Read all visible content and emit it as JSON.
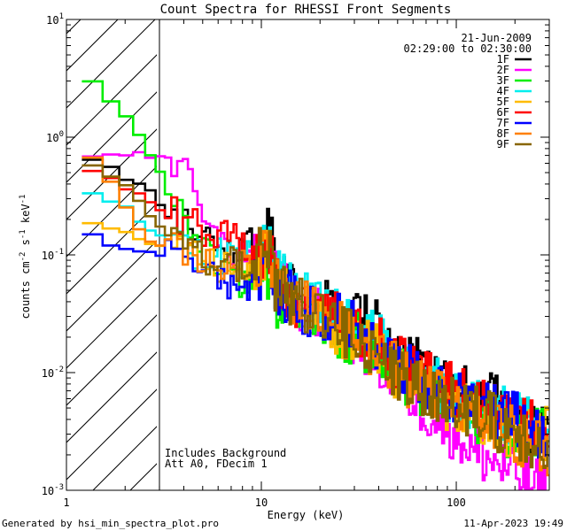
{
  "chart_data": {
    "type": "line",
    "title": "Count Spectra for RHESSI Front Segments",
    "xlabel": "Energy (keV)",
    "ylabel_main": "counts cm",
    "ylabel_sup1": "-2",
    "ylabel_mid1": " s",
    "ylabel_sup2": "-1",
    "ylabel_mid2": " keV",
    "ylabel_sup3": "-1",
    "xscale": "log",
    "yscale": "log",
    "xlim": [
      1,
      300
    ],
    "ylim": [
      0.001,
      10
    ],
    "x_ticks": [
      {
        "value": 1,
        "label": "1"
      },
      {
        "value": 10,
        "label": "10"
      },
      {
        "value": 100,
        "label": "100"
      }
    ],
    "y_ticks": [
      {
        "value": 10,
        "base": "10",
        "exp": "1"
      },
      {
        "value": 1,
        "base": "10",
        "exp": "0"
      },
      {
        "value": 0.1,
        "base": "10",
        "exp": "-1"
      },
      {
        "value": 0.01,
        "base": "10",
        "exp": "-2"
      },
      {
        "value": 0.001,
        "base": "10",
        "exp": "-3"
      }
    ],
    "date": "21-Jun-2009",
    "time_range": "02:29:00 to 02:30:00",
    "hatched_region_keV": [
      1,
      3
    ],
    "notes": [
      "Includes Background",
      "Att A0, FDecim 1"
    ],
    "footer_left": "Generated by hsi_min_spectra_plot.pro",
    "footer_right": "11-Apr-2023 19:49",
    "legend_position": "top-right",
    "series": [
      {
        "name": "1F",
        "color": "#000000",
        "anchors": [
          [
            1.2,
            0.62
          ],
          [
            1.5,
            0.6
          ],
          [
            2,
            0.45
          ],
          [
            2.5,
            0.4
          ],
          [
            3,
            0.26
          ],
          [
            4,
            0.2
          ],
          [
            5,
            0.16
          ],
          [
            6,
            0.14
          ],
          [
            7,
            0.1
          ],
          [
            8,
            0.12
          ],
          [
            9,
            0.12
          ],
          [
            10,
            0.14
          ],
          [
            11,
            0.16
          ],
          [
            12,
            0.08
          ],
          [
            14,
            0.05
          ],
          [
            17,
            0.04
          ],
          [
            20,
            0.04
          ],
          [
            25,
            0.03
          ],
          [
            30,
            0.032
          ],
          [
            40,
            0.025
          ],
          [
            50,
            0.015
          ],
          [
            60,
            0.012
          ],
          [
            80,
            0.009
          ],
          [
            100,
            0.008
          ],
          [
            150,
            0.006
          ],
          [
            200,
            0.004
          ],
          [
            250,
            0.003
          ],
          [
            290,
            0.003
          ]
        ]
      },
      {
        "name": "2F",
        "color": "#ff00ff",
        "anchors": [
          [
            1.2,
            0.7
          ],
          [
            2,
            0.72
          ],
          [
            3,
            0.68
          ],
          [
            4,
            0.5
          ],
          [
            5,
            0.25
          ],
          [
            6,
            0.15
          ],
          [
            7,
            0.1
          ],
          [
            9,
            0.09
          ],
          [
            11,
            0.09
          ],
          [
            12,
            0.06
          ],
          [
            15,
            0.04
          ],
          [
            20,
            0.03
          ],
          [
            30,
            0.02
          ],
          [
            40,
            0.012
          ],
          [
            50,
            0.009
          ],
          [
            60,
            0.006
          ],
          [
            80,
            0.004
          ],
          [
            100,
            0.003
          ],
          [
            130,
            0.002
          ],
          [
            150,
            0.0018
          ],
          [
            200,
            0.0014
          ],
          [
            250,
            0.0011
          ],
          [
            290,
            0.001
          ]
        ]
      },
      {
        "name": "3F",
        "color": "#00ee00",
        "anchors": [
          [
            1.2,
            3.2
          ],
          [
            1.5,
            2.8
          ],
          [
            2,
            1.5
          ],
          [
            2.5,
            0.9
          ],
          [
            3,
            0.55
          ],
          [
            3.5,
            0.3
          ],
          [
            4,
            0.2
          ],
          [
            5,
            0.12
          ],
          [
            6,
            0.09
          ],
          [
            7,
            0.08
          ],
          [
            8,
            0.05
          ],
          [
            9,
            0.06
          ],
          [
            10,
            0.08
          ],
          [
            11,
            0.06
          ],
          [
            12,
            0.04
          ],
          [
            15,
            0.03
          ],
          [
            20,
            0.025
          ],
          [
            30,
            0.02
          ],
          [
            40,
            0.015
          ],
          [
            50,
            0.01
          ],
          [
            70,
            0.007
          ],
          [
            100,
            0.005
          ],
          [
            150,
            0.004
          ],
          [
            200,
            0.003
          ],
          [
            290,
            0.003
          ]
        ]
      },
      {
        "name": "4F",
        "color": "#00eeee",
        "anchors": [
          [
            1.2,
            0.35
          ],
          [
            1.5,
            0.3
          ],
          [
            2,
            0.26
          ],
          [
            2.5,
            0.18
          ],
          [
            3,
            0.15
          ],
          [
            4,
            0.12
          ],
          [
            5,
            0.1
          ],
          [
            6,
            0.1
          ],
          [
            8,
            0.09
          ],
          [
            10,
            0.1
          ],
          [
            11,
            0.12
          ],
          [
            12,
            0.07
          ],
          [
            15,
            0.05
          ],
          [
            20,
            0.035
          ],
          [
            30,
            0.025
          ],
          [
            40,
            0.02
          ],
          [
            50,
            0.012
          ],
          [
            70,
            0.009
          ],
          [
            100,
            0.006
          ],
          [
            150,
            0.005
          ],
          [
            200,
            0.004
          ],
          [
            290,
            0.003
          ]
        ]
      },
      {
        "name": "5F",
        "color": "#ffbb00",
        "anchors": [
          [
            1.2,
            0.2
          ],
          [
            1.5,
            0.19
          ],
          [
            2,
            0.16
          ],
          [
            2.5,
            0.13
          ],
          [
            3,
            0.12
          ],
          [
            4,
            0.1
          ],
          [
            5,
            0.09
          ],
          [
            6,
            0.08
          ],
          [
            8,
            0.07
          ],
          [
            10,
            0.09
          ],
          [
            11,
            0.1
          ],
          [
            12,
            0.05
          ],
          [
            15,
            0.04
          ],
          [
            20,
            0.03
          ],
          [
            30,
            0.02
          ],
          [
            40,
            0.015
          ],
          [
            50,
            0.01
          ],
          [
            70,
            0.007
          ],
          [
            100,
            0.005
          ],
          [
            150,
            0.004
          ],
          [
            200,
            0.003
          ],
          [
            290,
            0.003
          ]
        ]
      },
      {
        "name": "6F",
        "color": "#ff0000",
        "anchors": [
          [
            1.2,
            0.55
          ],
          [
            1.5,
            0.5
          ],
          [
            2,
            0.38
          ],
          [
            2.5,
            0.3
          ],
          [
            3,
            0.25
          ],
          [
            4,
            0.2
          ],
          [
            5,
            0.17
          ],
          [
            6,
            0.15
          ],
          [
            7,
            0.14
          ],
          [
            8,
            0.12
          ],
          [
            10,
            0.1
          ],
          [
            11,
            0.1
          ],
          [
            12,
            0.06
          ],
          [
            15,
            0.04
          ],
          [
            20,
            0.035
          ],
          [
            30,
            0.025
          ],
          [
            40,
            0.02
          ],
          [
            50,
            0.012
          ],
          [
            70,
            0.009
          ],
          [
            100,
            0.007
          ],
          [
            150,
            0.005
          ],
          [
            200,
            0.004
          ],
          [
            290,
            0.003
          ]
        ]
      },
      {
        "name": "7F",
        "color": "#0000ff",
        "anchors": [
          [
            1.2,
            0.17
          ],
          [
            1.5,
            0.13
          ],
          [
            2,
            0.12
          ],
          [
            2.5,
            0.11
          ],
          [
            3,
            0.1
          ],
          [
            4,
            0.09
          ],
          [
            5,
            0.08
          ],
          [
            6,
            0.06
          ],
          [
            7,
            0.05
          ],
          [
            8,
            0.05
          ],
          [
            9,
            0.06
          ],
          [
            10,
            0.07
          ],
          [
            11,
            0.08
          ],
          [
            12,
            0.05
          ],
          [
            15,
            0.04
          ],
          [
            20,
            0.03
          ],
          [
            30,
            0.025
          ],
          [
            40,
            0.018
          ],
          [
            50,
            0.012
          ],
          [
            70,
            0.008
          ],
          [
            100,
            0.006
          ],
          [
            150,
            0.005
          ],
          [
            200,
            0.004
          ],
          [
            290,
            0.003
          ]
        ]
      },
      {
        "name": "8F",
        "color": "#ff8000",
        "anchors": [
          [
            1.2,
            0.9
          ],
          [
            1.5,
            0.6
          ],
          [
            2,
            0.25
          ],
          [
            2.5,
            0.15
          ],
          [
            3,
            0.12
          ],
          [
            4,
            0.1
          ],
          [
            5,
            0.09
          ],
          [
            6,
            0.08
          ],
          [
            8,
            0.08
          ],
          [
            10,
            0.09
          ],
          [
            11,
            0.1
          ],
          [
            12,
            0.06
          ],
          [
            15,
            0.04
          ],
          [
            20,
            0.03
          ],
          [
            30,
            0.02
          ],
          [
            40,
            0.015
          ],
          [
            50,
            0.01
          ],
          [
            70,
            0.007
          ],
          [
            100,
            0.005
          ],
          [
            150,
            0.004
          ],
          [
            200,
            0.003
          ],
          [
            290,
            0.002
          ]
        ]
      },
      {
        "name": "9F",
        "color": "#886600",
        "anchors": [
          [
            1.2,
            0.65
          ],
          [
            1.5,
            0.55
          ],
          [
            2,
            0.4
          ],
          [
            2.5,
            0.25
          ],
          [
            3,
            0.18
          ],
          [
            4,
            0.12
          ],
          [
            5,
            0.1
          ],
          [
            6,
            0.09
          ],
          [
            8,
            0.08
          ],
          [
            10,
            0.1
          ],
          [
            11,
            0.1
          ],
          [
            12,
            0.05
          ],
          [
            15,
            0.04
          ],
          [
            20,
            0.03
          ],
          [
            30,
            0.02
          ],
          [
            40,
            0.014
          ],
          [
            50,
            0.01
          ],
          [
            70,
            0.007
          ],
          [
            100,
            0.005
          ],
          [
            150,
            0.004
          ],
          [
            200,
            0.003
          ],
          [
            290,
            0.002
          ]
        ]
      }
    ]
  }
}
